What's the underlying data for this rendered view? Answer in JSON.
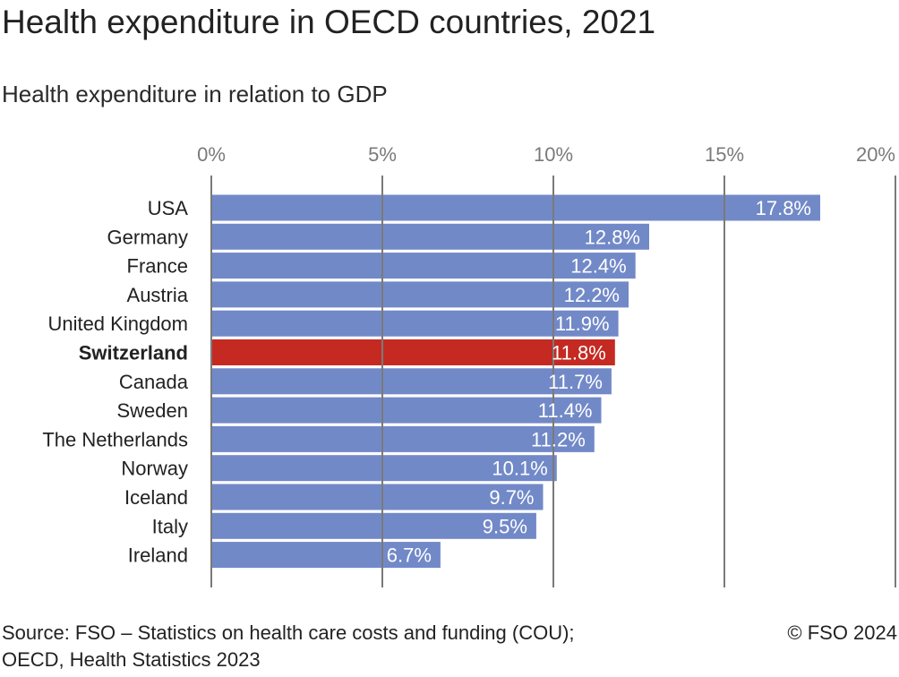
{
  "title": "Health expenditure in OECD countries, 2021",
  "subtitle": "Health expenditure in relation to GDP",
  "chart_data": {
    "type": "bar",
    "orientation": "horizontal",
    "title": "Health expenditure in OECD countries, 2021",
    "subtitle": "Health expenditure in relation to GDP",
    "xlabel": "",
    "ylabel": "",
    "xlim": [
      0,
      20
    ],
    "ticks": [
      0,
      5,
      10,
      15,
      20
    ],
    "tick_labels": [
      "0%",
      "5%",
      "10%",
      "15%",
      "20%"
    ],
    "grid": true,
    "categories": [
      "USA",
      "Germany",
      "France",
      "Austria",
      "United Kingdom",
      "Switzerland",
      "Canada",
      "Sweden",
      "The Netherlands",
      "Norway",
      "Iceland",
      "Italy",
      "Ireland"
    ],
    "values": [
      17.8,
      12.8,
      12.4,
      12.2,
      11.9,
      11.8,
      11.7,
      11.4,
      11.2,
      10.1,
      9.7,
      9.5,
      6.7
    ],
    "value_labels": [
      "17.8%",
      "12.8%",
      "12.4%",
      "12.2%",
      "11.9%",
      "11.8%",
      "11.7%",
      "11.4%",
      "11.2%",
      "10.1%",
      "9.7%",
      "9.5%",
      "6.7%"
    ],
    "highlight": "Switzerland",
    "bar_color": "#7289c8",
    "highlight_color": "#c42a22"
  },
  "footer": {
    "source_line1": "Source: FSO – Statistics on health care costs and funding (COU);",
    "source_line2": "OECD, Health Statistics 2023",
    "copyright": "© FSO 2024"
  }
}
